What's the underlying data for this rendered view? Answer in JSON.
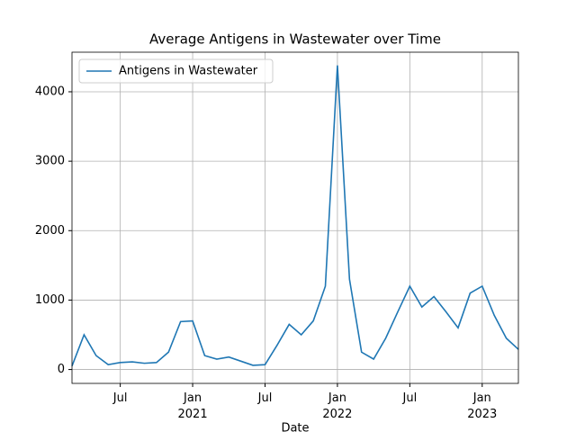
{
  "chart_data": {
    "type": "line",
    "title": "Average Antigens in Wastewater over Time",
    "xlabel": "Date",
    "x": [
      "2020-03",
      "2020-04",
      "2020-05",
      "2020-06",
      "2020-07",
      "2020-08",
      "2020-09",
      "2020-10",
      "2020-11",
      "2020-12",
      "2021-01",
      "2021-02",
      "2021-03",
      "2021-04",
      "2021-05",
      "2021-06",
      "2021-07",
      "2021-08",
      "2021-09",
      "2021-10",
      "2021-11",
      "2021-12",
      "2022-01",
      "2022-02",
      "2022-03",
      "2022-04",
      "2022-05",
      "2022-06",
      "2022-07",
      "2022-08",
      "2022-09",
      "2022-10",
      "2022-11",
      "2022-12",
      "2023-01",
      "2023-02",
      "2023-03",
      "2023-04"
    ],
    "series": [
      {
        "name": "Antigens in Wastewater",
        "color": "#1f77b4",
        "values": [
          50,
          500,
          200,
          70,
          100,
          110,
          90,
          100,
          250,
          690,
          700,
          200,
          150,
          180,
          120,
          60,
          70,
          350,
          650,
          500,
          700,
          1200,
          4380,
          1300,
          250,
          150,
          450,
          830,
          1200,
          900,
          1050,
          830,
          600,
          1100,
          1200,
          780,
          450,
          290
        ]
      }
    ],
    "xlim": [
      "2020-03",
      "2023-04"
    ],
    "xticks": [
      {
        "value": "2020-07",
        "label": "Jul"
      },
      {
        "value": "2021-01",
        "label": "Jan\n2021"
      },
      {
        "value": "2021-07",
        "label": "Jul"
      },
      {
        "value": "2022-01",
        "label": "Jan\n2022"
      },
      {
        "value": "2022-07",
        "label": "Jul"
      },
      {
        "value": "2023-01",
        "label": "Jan\n2023"
      }
    ],
    "ylim": [
      -200,
      4570
    ],
    "yticks": [
      0,
      1000,
      2000,
      3000,
      4000
    ],
    "grid": true,
    "legend": "upper left"
  }
}
